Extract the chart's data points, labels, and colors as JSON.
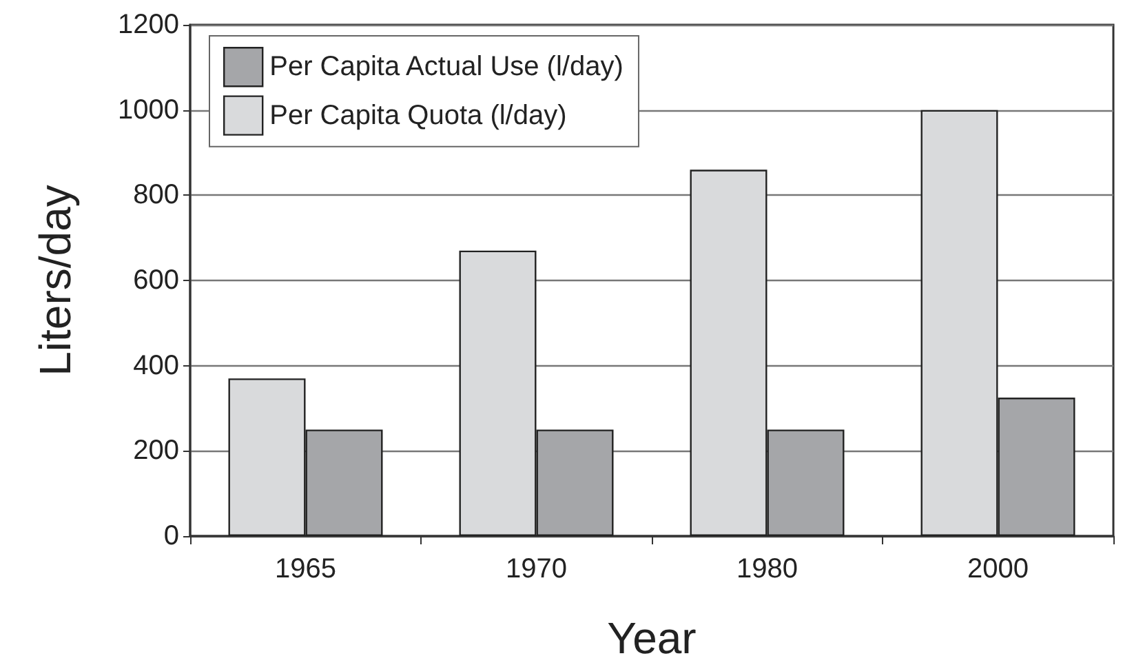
{
  "chart_data": {
    "type": "bar",
    "xlabel": "Year",
    "ylabel": "Liters/day",
    "categories": [
      "1965",
      "1970",
      "1980",
      "2000"
    ],
    "series": [
      {
        "name": "Per Capita Actual Use (l/day)",
        "color": "#a5a6a9",
        "values": [
          250,
          250,
          250,
          325
        ]
      },
      {
        "name": "Per Capita Quota (l/day)",
        "color": "#d9dadc",
        "values": [
          370,
          670,
          860,
          1000
        ]
      }
    ],
    "ylim": [
      0,
      1200
    ],
    "yticks": [
      0,
      200,
      400,
      600,
      800,
      1000,
      1200
    ],
    "grid": "y",
    "legend": "top left"
  }
}
